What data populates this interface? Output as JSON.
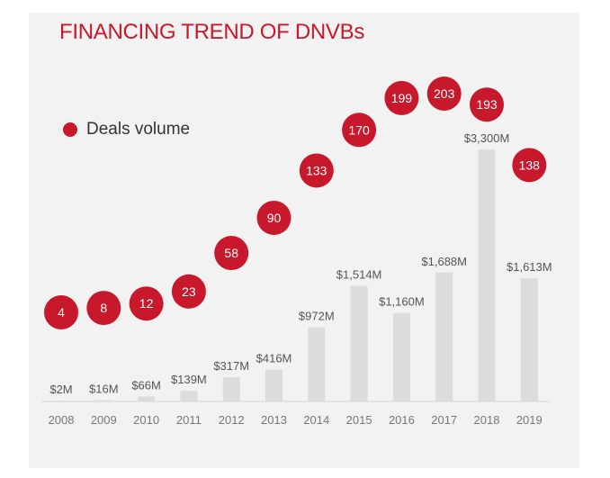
{
  "title": "FINANCING TREND OF DNVBs",
  "colors": {
    "accent": "#c8192c",
    "bar": "#dcdcdc",
    "panel": "#f2f2f2"
  },
  "chart_data": {
    "type": "bar",
    "title": "FINANCING TREND OF DNVBs",
    "categories": [
      "2008",
      "2009",
      "2010",
      "2011",
      "2012",
      "2013",
      "2014",
      "2015",
      "2016",
      "2017",
      "2018",
      "2019"
    ],
    "series": [
      {
        "kind": "bar",
        "values": [
          2,
          16,
          66,
          139,
          317,
          416,
          972,
          1514,
          1160,
          1688,
          3300,
          1613
        ],
        "labels": [
          "$2M",
          "$16M",
          "$66M",
          "$139M",
          "$317M",
          "$416M",
          "$972M",
          "$1,514M",
          "$1,160M",
          "$1,688M",
          "$3,300M",
          "$1,613M"
        ],
        "unit": "$M"
      },
      {
        "name": "Deals volume",
        "kind": "bubble",
        "values": [
          4,
          8,
          12,
          23,
          58,
          90,
          133,
          170,
          199,
          203,
          193,
          138
        ]
      }
    ],
    "legend": {
      "position": "top-left",
      "entries": [
        "Deals volume"
      ]
    },
    "ylim": [
      0,
      3300
    ],
    "grid": false
  }
}
